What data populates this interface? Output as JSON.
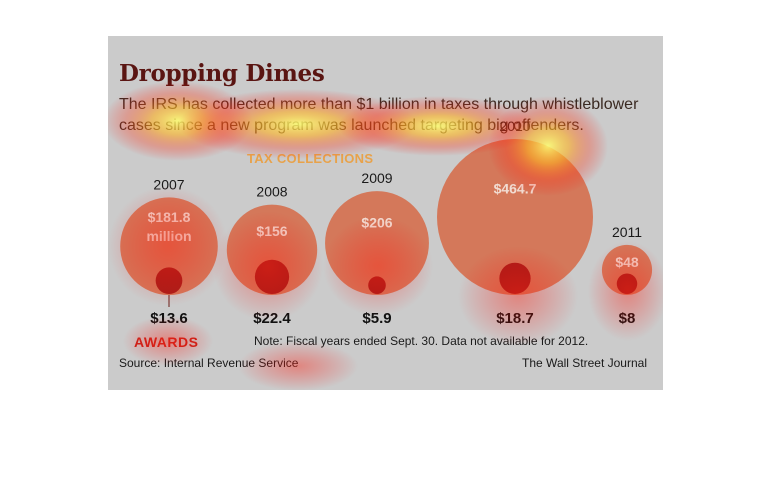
{
  "title": "Dropping Dimes",
  "subtitle": "The IRS has collected more than $1 billion in taxes through whistleblower cases since a new program was launched targeting big offenders.",
  "tax_collections_label": "TAX COLLECTIONS",
  "awards_label": "AWARDS",
  "note": "Note: Fiscal years ended Sept. 30. Data not available for 2012.",
  "source": "Source: Internal Revenue Service",
  "credit": "The Wall Street Journal",
  "colors": {
    "tax_circle": "#d4785a",
    "award_circle": "#a81e1a",
    "panel": "#cbcbcb"
  },
  "chart_data": {
    "type": "bubble",
    "unit": "$ million",
    "categories": [
      "2007",
      "2008",
      "2009",
      "2010",
      "2011"
    ],
    "series": [
      {
        "name": "TAX COLLECTIONS",
        "values": [
          181.8,
          156,
          206,
          464.7,
          48
        ],
        "labels": [
          "$181.8 million",
          "$156",
          "$206",
          "$464.7",
          "$48"
        ]
      },
      {
        "name": "AWARDS",
        "values": [
          13.6,
          22.4,
          5.9,
          18.7,
          8
        ],
        "labels": [
          "$13.6",
          "$22.4",
          "$5.9",
          "$18.7",
          "$8"
        ]
      }
    ]
  }
}
